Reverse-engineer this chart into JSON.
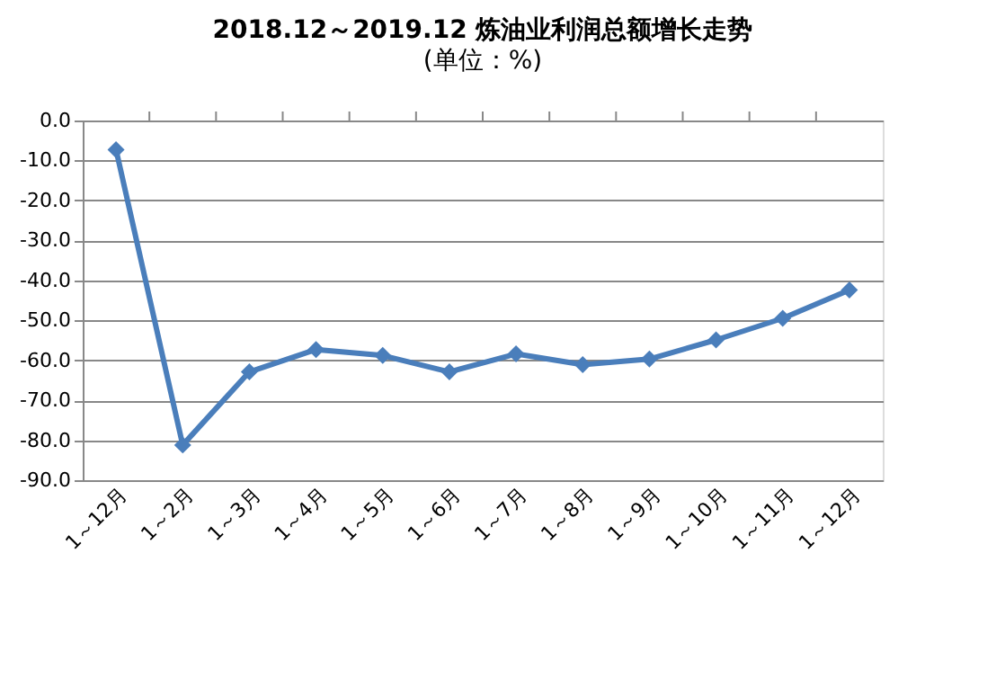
{
  "chart_data": {
    "type": "line",
    "title": "2018.12～2019.12 炼油业利润总额增长走势",
    "subtitle": "(单位：%)",
    "categories": [
      "1～12月",
      "1～2月",
      "1～3月",
      "1～4月",
      "1～5月",
      "1～6月",
      "1～7月",
      "1～8月",
      "1～9月",
      "1～10月",
      "1～11月",
      "1～12月"
    ],
    "series": [
      {
        "color": "#4a7ebb",
        "values": [
          -7.3,
          -81.2,
          -62.9,
          -57.3,
          -58.8,
          -62.9,
          -58.4,
          -61.1,
          -59.7,
          -54.9,
          -49.5,
          -42.4
        ]
      }
    ],
    "ylim": [
      -90,
      0
    ],
    "yticks": [
      {
        "value": 0,
        "label": "0.0"
      },
      {
        "value": -10,
        "label": "-10.0"
      },
      {
        "value": -20,
        "label": "-20.0"
      },
      {
        "value": -30,
        "label": "-30.0"
      },
      {
        "value": -40,
        "label": "-40.0"
      },
      {
        "value": -50,
        "label": "-50.0"
      },
      {
        "value": -60,
        "label": "-60.0"
      },
      {
        "value": -70,
        "label": "-70.0"
      },
      {
        "value": -80,
        "label": "-80.0"
      },
      {
        "value": -90,
        "label": "-90.0"
      }
    ],
    "grid": "y",
    "marker": "diamond",
    "line_style": "solid"
  }
}
